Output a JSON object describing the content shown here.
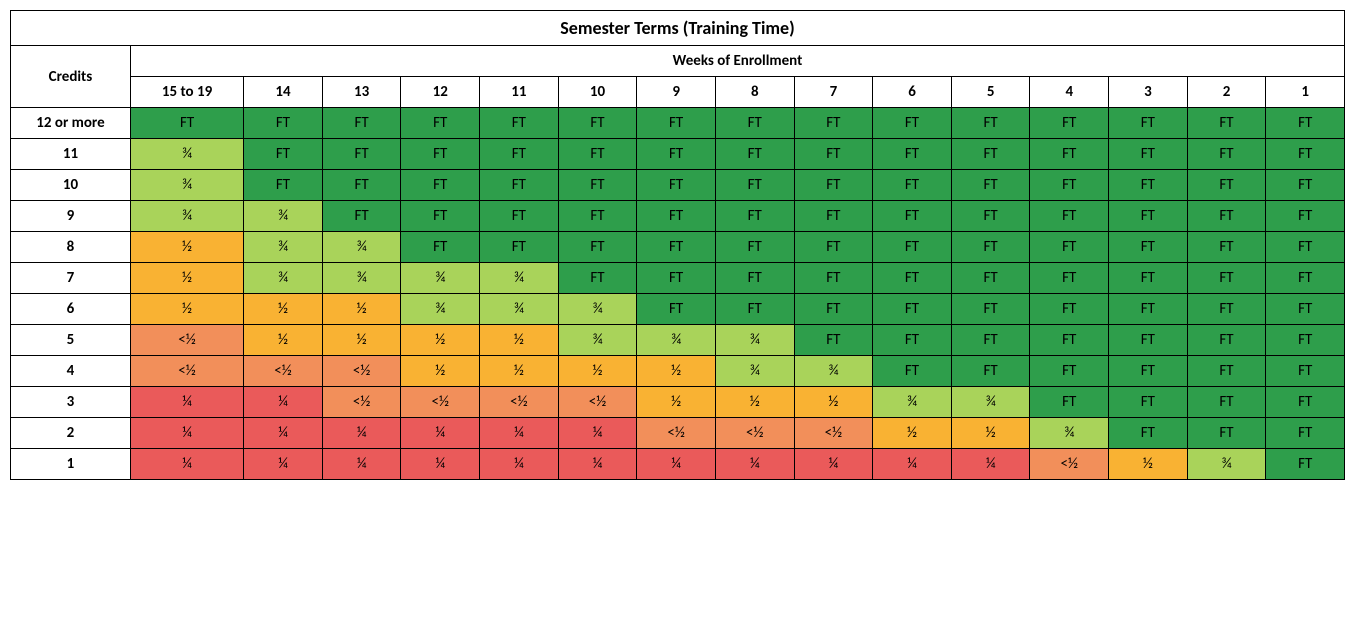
{
  "title": "Semester Terms (Training Time)",
  "subtitle": "Weeks of Enrollment",
  "credits_label": "Credits",
  "week_headers": [
    "15 to 19",
    "14",
    "13",
    "12",
    "11",
    "10",
    "9",
    "8",
    "7",
    "6",
    "5",
    "4",
    "3",
    "2",
    "1"
  ],
  "row_labels": [
    "12 or more",
    "11",
    "10",
    "9",
    "8",
    "7",
    "6",
    "5",
    "4",
    "3",
    "2",
    "1"
  ],
  "levels": {
    "FT": {
      "text": "FT",
      "color": "#2e9e4b"
    },
    "TQ": {
      "text": "¾",
      "color": "#a9d35a"
    },
    "HALF": {
      "text": "½",
      "color": "#f9b233"
    },
    "LTH": {
      "text": "<½",
      "color": "#f28f5a"
    },
    "Q": {
      "text": "¼",
      "color": "#ea5a5a"
    }
  },
  "typography": {
    "title_fontsize": 18,
    "header_fontsize": 15,
    "cell_fontsize": 15,
    "border_color": "#000000",
    "background_color": "#ffffff",
    "text_color": "#000000"
  },
  "grid": [
    [
      "FT",
      "FT",
      "FT",
      "FT",
      "FT",
      "FT",
      "FT",
      "FT",
      "FT",
      "FT",
      "FT",
      "FT",
      "FT",
      "FT",
      "FT"
    ],
    [
      "TQ",
      "FT",
      "FT",
      "FT",
      "FT",
      "FT",
      "FT",
      "FT",
      "FT",
      "FT",
      "FT",
      "FT",
      "FT",
      "FT",
      "FT"
    ],
    [
      "TQ",
      "FT",
      "FT",
      "FT",
      "FT",
      "FT",
      "FT",
      "FT",
      "FT",
      "FT",
      "FT",
      "FT",
      "FT",
      "FT",
      "FT"
    ],
    [
      "TQ",
      "TQ",
      "FT",
      "FT",
      "FT",
      "FT",
      "FT",
      "FT",
      "FT",
      "FT",
      "FT",
      "FT",
      "FT",
      "FT",
      "FT"
    ],
    [
      "HALF",
      "TQ",
      "TQ",
      "FT",
      "FT",
      "FT",
      "FT",
      "FT",
      "FT",
      "FT",
      "FT",
      "FT",
      "FT",
      "FT",
      "FT"
    ],
    [
      "HALF",
      "TQ",
      "TQ",
      "TQ",
      "TQ",
      "FT",
      "FT",
      "FT",
      "FT",
      "FT",
      "FT",
      "FT",
      "FT",
      "FT",
      "FT"
    ],
    [
      "HALF",
      "HALF",
      "HALF",
      "TQ",
      "TQ",
      "TQ",
      "FT",
      "FT",
      "FT",
      "FT",
      "FT",
      "FT",
      "FT",
      "FT",
      "FT"
    ],
    [
      "LTH",
      "HALF",
      "HALF",
      "HALF",
      "HALF",
      "TQ",
      "TQ",
      "TQ",
      "FT",
      "FT",
      "FT",
      "FT",
      "FT",
      "FT",
      "FT"
    ],
    [
      "LTH",
      "LTH",
      "LTH",
      "HALF",
      "HALF",
      "HALF",
      "HALF",
      "TQ",
      "TQ",
      "FT",
      "FT",
      "FT",
      "FT",
      "FT",
      "FT"
    ],
    [
      "Q",
      "Q",
      "LTH",
      "LTH",
      "LTH",
      "LTH",
      "HALF",
      "HALF",
      "HALF",
      "TQ",
      "TQ",
      "FT",
      "FT",
      "FT",
      "FT"
    ],
    [
      "Q",
      "Q",
      "Q",
      "Q",
      "Q",
      "Q",
      "LTH",
      "LTH",
      "LTH",
      "HALF",
      "HALF",
      "TQ",
      "FT",
      "FT",
      "FT"
    ],
    [
      "Q",
      "Q",
      "Q",
      "Q",
      "Q",
      "Q",
      "Q",
      "Q",
      "Q",
      "Q",
      "Q",
      "LTH",
      "HALF",
      "TQ",
      "FT"
    ]
  ]
}
